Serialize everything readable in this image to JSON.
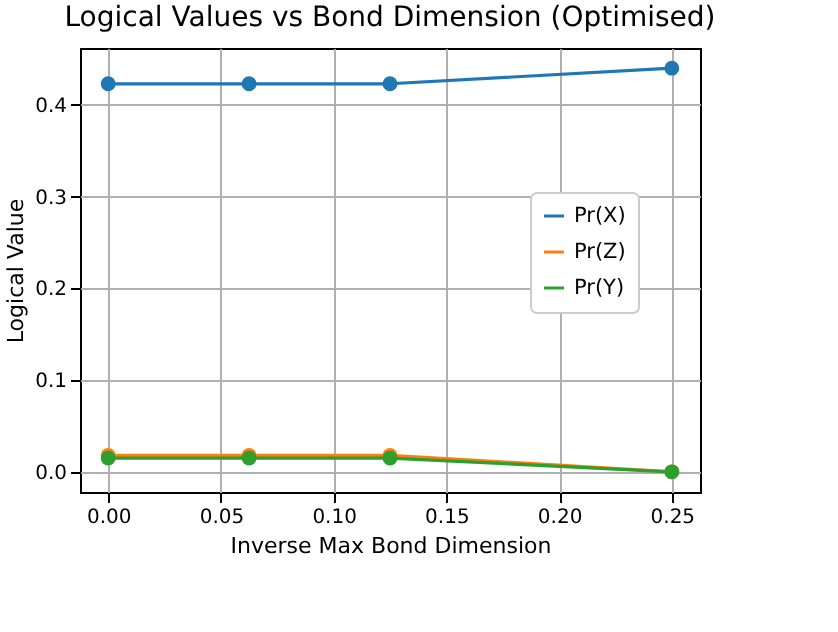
{
  "chart_data": {
    "type": "line",
    "title": "Logical Values vs Bond Dimension (Optimised)",
    "xlabel": "Inverse Max Bond Dimension",
    "ylabel": "Logical Value",
    "x": [
      0,
      0.0625,
      0.125,
      0.25
    ],
    "series": [
      {
        "name": "Pr(X)",
        "color": "#1f77b4",
        "values": [
          0.423,
          0.423,
          0.423,
          0.44
        ]
      },
      {
        "name": "Pr(Z)",
        "color": "#ff7f0e",
        "values": [
          0.018,
          0.018,
          0.018,
          0
        ]
      },
      {
        "name": "Pr(Y)",
        "color": "#2ca02c",
        "values": [
          0.015,
          0.015,
          0.015,
          0
        ]
      }
    ],
    "xlim": [
      -0.0125,
      0.2625
    ],
    "xticks": [
      {
        "value": 0,
        "label": "0.00"
      },
      0.05,
      {
        "value": 0.1,
        "label": "0.10"
      },
      0.15,
      {
        "value": 0.2,
        "label": "0.20"
      },
      0.25
    ],
    "ylim": [
      -0.022,
      0.462
    ],
    "yticks": [
      {
        "value": 0,
        "label": "0.0"
      },
      0.1,
      0.2,
      0.3,
      0.4
    ],
    "grid": true,
    "legend": "right",
    "marker": "circle",
    "line_style": "solid"
  }
}
